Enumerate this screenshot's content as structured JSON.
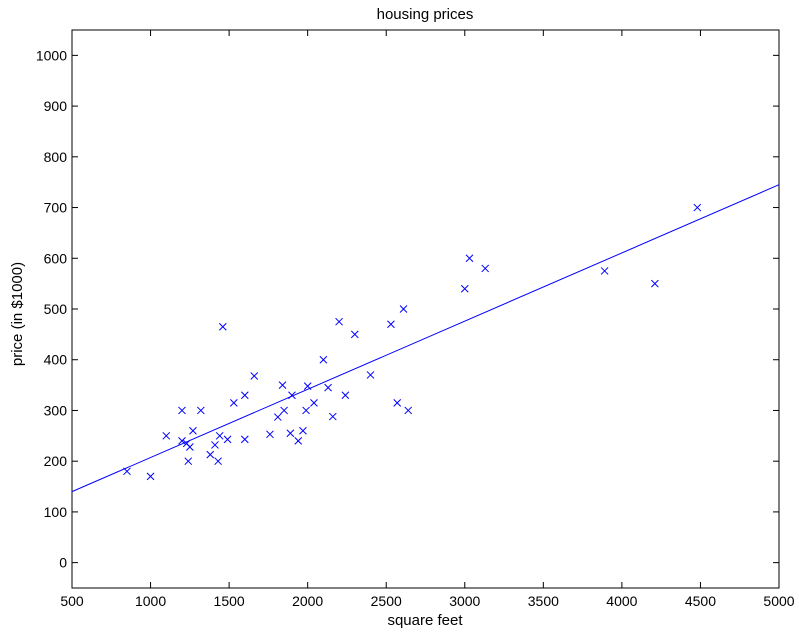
{
  "chart_data": {
    "type": "scatter",
    "title": "housing prices",
    "xlabel": "square feet",
    "ylabel": "price (in $1000)",
    "xlim": [
      500,
      5000
    ],
    "ylim": [
      -50,
      1050
    ],
    "xticks": [
      500,
      1000,
      1500,
      2000,
      2500,
      3000,
      3500,
      4000,
      4500,
      5000
    ],
    "yticks": [
      0,
      100,
      200,
      300,
      400,
      500,
      600,
      700,
      800,
      900,
      1000
    ],
    "grid": false,
    "colors": {
      "series": "#0000ff",
      "axes": "#000000"
    },
    "series": [
      {
        "type": "scatter",
        "marker": "x",
        "points": [
          [
            850,
            180
          ],
          [
            1000,
            170
          ],
          [
            1100,
            250
          ],
          [
            1200,
            300
          ],
          [
            1200,
            240
          ],
          [
            1230,
            235
          ],
          [
            1240,
            200
          ],
          [
            1250,
            228
          ],
          [
            1270,
            260
          ],
          [
            1320,
            300
          ],
          [
            1380,
            213
          ],
          [
            1410,
            232
          ],
          [
            1430,
            200
          ],
          [
            1440,
            250
          ],
          [
            1460,
            465
          ],
          [
            1490,
            243
          ],
          [
            1530,
            315
          ],
          [
            1600,
            330
          ],
          [
            1600,
            243
          ],
          [
            1660,
            368
          ],
          [
            1760,
            253
          ],
          [
            1810,
            287
          ],
          [
            1840,
            350
          ],
          [
            1850,
            300
          ],
          [
            1890,
            255
          ],
          [
            1900,
            330
          ],
          [
            1940,
            240
          ],
          [
            1970,
            260
          ],
          [
            1990,
            300
          ],
          [
            2000,
            348
          ],
          [
            2040,
            315
          ],
          [
            2100,
            400
          ],
          [
            2130,
            345
          ],
          [
            2160,
            288
          ],
          [
            2200,
            475
          ],
          [
            2240,
            330
          ],
          [
            2300,
            450
          ],
          [
            2400,
            370
          ],
          [
            2530,
            470
          ],
          [
            2570,
            315
          ],
          [
            2610,
            500
          ],
          [
            2640,
            300
          ],
          [
            3000,
            540
          ],
          [
            3030,
            600
          ],
          [
            3130,
            580
          ],
          [
            3890,
            575
          ],
          [
            4210,
            550
          ],
          [
            4480,
            700
          ]
        ]
      },
      {
        "type": "line",
        "points": [
          [
            500,
            140
          ],
          [
            5000,
            745
          ]
        ]
      }
    ]
  }
}
